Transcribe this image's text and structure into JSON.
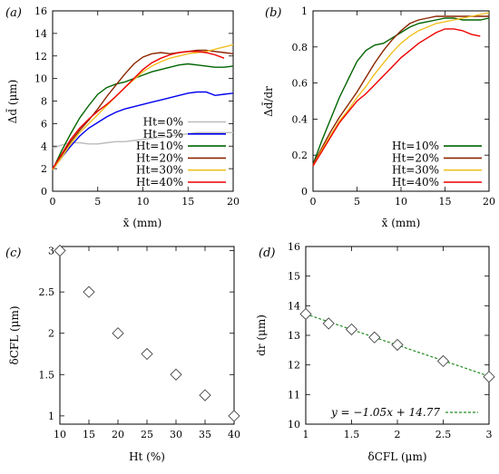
{
  "chart_data": [
    {
      "panel": "(a)",
      "type": "line",
      "xlabel": "x̄ (mm)",
      "ylabel": "Δd̄ (μm)",
      "xlim": [
        0,
        20
      ],
      "ylim": [
        0,
        16
      ],
      "xticks": [
        0,
        5,
        10,
        15,
        20
      ],
      "yticks": [
        0,
        2,
        4,
        6,
        8,
        10,
        12,
        14,
        16
      ],
      "legend_position": "bottom-right",
      "series": [
        {
          "name": "Ht=0%",
          "color": "#bbbbbb",
          "x": [
            0,
            1,
            2,
            3,
            4,
            5,
            6,
            7,
            8,
            9,
            10,
            11,
            12,
            13,
            14,
            15,
            16,
            17,
            18,
            19,
            20
          ],
          "y": [
            3.8,
            4.1,
            4.3,
            4.3,
            4.2,
            4.2,
            4.3,
            4.4,
            4.4,
            4.5,
            4.6,
            4.7,
            4.8,
            4.9,
            5.0,
            5.1,
            5.2,
            5.2,
            5.2,
            5.2,
            5.2
          ]
        },
        {
          "name": "Ht=5%",
          "color": "#0000ee",
          "x": [
            0,
            1,
            2,
            3,
            4,
            5,
            6,
            7,
            8,
            9,
            10,
            11,
            12,
            13,
            14,
            15,
            16,
            17,
            18,
            19,
            20
          ],
          "y": [
            1.9,
            3.0,
            4.0,
            4.9,
            5.6,
            6.1,
            6.6,
            7.0,
            7.3,
            7.5,
            7.7,
            7.9,
            8.1,
            8.3,
            8.5,
            8.7,
            8.8,
            8.8,
            8.5,
            8.6,
            8.7
          ]
        },
        {
          "name": "Ht=10%",
          "color": "#006400",
          "x": [
            0,
            1,
            2,
            3,
            4,
            5,
            6,
            7,
            8,
            9,
            10,
            11,
            12,
            13,
            14,
            15,
            16,
            17,
            18,
            19,
            20
          ],
          "y": [
            1.9,
            3.6,
            5.1,
            6.5,
            7.6,
            8.6,
            9.2,
            9.5,
            9.7,
            10.0,
            10.3,
            10.6,
            10.8,
            11.0,
            11.2,
            11.3,
            11.2,
            11.1,
            11.0,
            11.0,
            11.1
          ]
        },
        {
          "name": "Ht=20%",
          "color": "#8b2500",
          "x": [
            0,
            1,
            2,
            3,
            4,
            5,
            6,
            7,
            8,
            9,
            10,
            11,
            12,
            13,
            14,
            15,
            16,
            17,
            18,
            19,
            20
          ],
          "y": [
            2.0,
            3.2,
            4.4,
            5.4,
            6.3,
            7.3,
            8.4,
            9.4,
            10.4,
            11.3,
            11.9,
            12.2,
            12.3,
            12.2,
            12.3,
            12.4,
            12.5,
            12.5,
            12.4,
            12.3,
            12.2
          ]
        },
        {
          "name": "Ht=30%",
          "color": "#f0c020",
          "x": [
            0,
            1,
            2,
            3,
            4,
            5,
            6,
            7,
            8,
            9,
            10,
            11,
            12,
            13,
            14,
            15,
            16,
            17,
            18,
            19,
            20
          ],
          "y": [
            1.9,
            3.0,
            4.2,
            5.2,
            6.0,
            6.8,
            7.6,
            8.4,
            9.2,
            9.9,
            10.6,
            11.1,
            11.5,
            11.8,
            12.0,
            12.2,
            12.3,
            12.4,
            12.6,
            12.8,
            13.0
          ]
        },
        {
          "name": "Ht=40%",
          "color": "#ee0000",
          "x": [
            0,
            1,
            2,
            3,
            4,
            5,
            6,
            7,
            8,
            9,
            10,
            11,
            12,
            13,
            14,
            15,
            16,
            17,
            18,
            19
          ],
          "y": [
            2.0,
            3.3,
            4.6,
            5.6,
            6.4,
            7.1,
            7.7,
            8.4,
            9.2,
            10.0,
            10.8,
            11.4,
            11.8,
            12.1,
            12.3,
            12.4,
            12.4,
            12.3,
            12.1,
            11.8
          ]
        }
      ]
    },
    {
      "panel": "(b)",
      "type": "line",
      "xlabel": "x̄ (mm)",
      "ylabel": "Δd̄/dr",
      "xlim": [
        0,
        20
      ],
      "ylim": [
        0,
        1
      ],
      "xticks": [
        0,
        5,
        10,
        15,
        20
      ],
      "yticks": [
        0,
        0.2,
        0.4,
        0.6,
        0.8,
        1
      ],
      "legend_position": "bottom-right",
      "series": [
        {
          "name": "Ht=10%",
          "color": "#006400",
          "x": [
            0,
            1,
            2,
            3,
            4,
            5,
            6,
            7,
            8,
            9,
            10,
            11,
            12,
            13,
            14,
            15,
            16,
            17,
            18,
            19,
            20
          ],
          "y": [
            0.15,
            0.28,
            0.4,
            0.52,
            0.62,
            0.72,
            0.78,
            0.81,
            0.82,
            0.85,
            0.88,
            0.91,
            0.93,
            0.94,
            0.95,
            0.96,
            0.96,
            0.95,
            0.95,
            0.95,
            0.96
          ]
        },
        {
          "name": "Ht=20%",
          "color": "#8b2500",
          "x": [
            0,
            1,
            2,
            3,
            4,
            5,
            6,
            7,
            8,
            9,
            10,
            11,
            12,
            13,
            14,
            15,
            16,
            17,
            18,
            19,
            20
          ],
          "y": [
            0.15,
            0.24,
            0.33,
            0.41,
            0.48,
            0.55,
            0.63,
            0.71,
            0.78,
            0.84,
            0.89,
            0.93,
            0.95,
            0.96,
            0.97,
            0.97,
            0.97,
            0.97,
            0.97,
            0.97,
            0.97
          ]
        },
        {
          "name": "Ht=30%",
          "color": "#f0c020",
          "x": [
            0,
            1,
            2,
            3,
            4,
            5,
            6,
            7,
            8,
            9,
            10,
            11,
            12,
            13,
            14,
            15,
            16,
            17,
            18,
            19,
            20
          ],
          "y": [
            0.14,
            0.23,
            0.31,
            0.39,
            0.45,
            0.52,
            0.58,
            0.65,
            0.71,
            0.77,
            0.82,
            0.86,
            0.89,
            0.91,
            0.93,
            0.94,
            0.95,
            0.96,
            0.97,
            0.98,
            0.99
          ]
        },
        {
          "name": "Ht=40%",
          "color": "#ee0000",
          "x": [
            0,
            1,
            2,
            3,
            4,
            5,
            6,
            7,
            8,
            9,
            10,
            11,
            12,
            13,
            14,
            15,
            16,
            17,
            18,
            19
          ],
          "y": [
            0.14,
            0.22,
            0.3,
            0.38,
            0.44,
            0.5,
            0.54,
            0.59,
            0.64,
            0.69,
            0.74,
            0.78,
            0.82,
            0.85,
            0.88,
            0.9,
            0.9,
            0.89,
            0.87,
            0.86
          ]
        }
      ]
    },
    {
      "panel": "(c)",
      "type": "scatter",
      "xlabel": "Ht (%)",
      "ylabel": "δCFL (μm)",
      "xlim": [
        10,
        40
      ],
      "ylim": [
        0.9,
        3.05
      ],
      "xticks": [
        10,
        15,
        20,
        25,
        30,
        35,
        40
      ],
      "yticks": [
        1,
        1.5,
        2,
        2.5,
        3
      ],
      "marker": "diamond",
      "x": [
        10,
        15,
        20,
        25,
        30,
        35,
        40
      ],
      "y": [
        3.0,
        2.5,
        2.0,
        1.75,
        1.5,
        1.25,
        1.0
      ]
    },
    {
      "panel": "(d)",
      "type": "scatter",
      "xlabel": "δCFL (μm)",
      "ylabel": "dr (μm)",
      "xlim": [
        1,
        3
      ],
      "ylim": [
        10,
        16
      ],
      "xticks": [
        1,
        1.5,
        2,
        2.5,
        3
      ],
      "yticks": [
        10,
        11,
        12,
        13,
        14,
        15,
        16
      ],
      "marker": "diamond",
      "x": [
        1.0,
        1.25,
        1.5,
        1.75,
        2.0,
        2.5,
        3.0
      ],
      "y": [
        13.72,
        13.4,
        13.2,
        12.93,
        12.68,
        12.13,
        11.6
      ],
      "fit": {
        "slope": -1.05,
        "intercept": 14.77,
        "label": "y = −1.05x + 14.77",
        "color": "#228b22"
      },
      "legend_position": "bottom-right"
    }
  ]
}
